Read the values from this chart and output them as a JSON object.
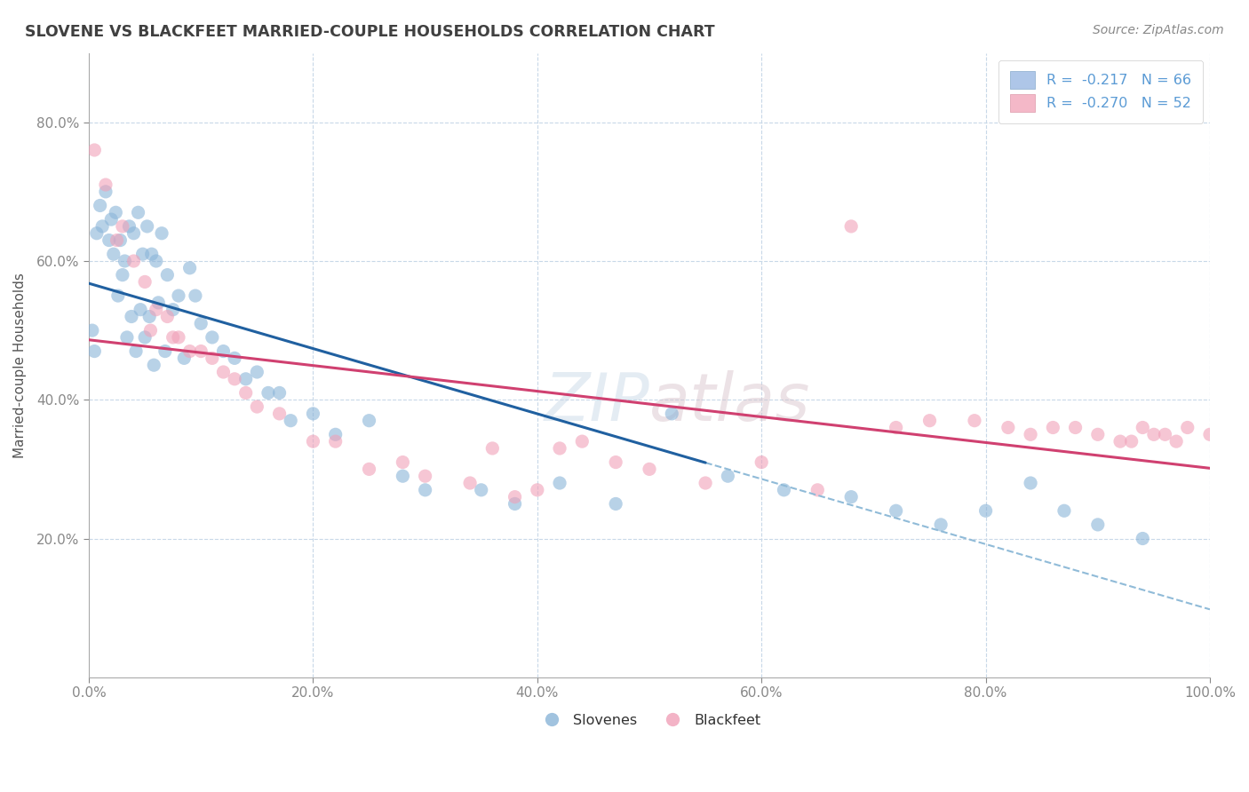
{
  "title": "SLOVENE VS BLACKFEET MARRIED-COUPLE HOUSEHOLDS CORRELATION CHART",
  "source": "Source: ZipAtlas.com",
  "ylabel": "Married-couple Households",
  "legend_entries": [
    {
      "label": "R =  -0.217   N = 66",
      "color": "#aec6e8"
    },
    {
      "label": "R =  -0.270   N = 52",
      "color": "#f4b8c8"
    }
  ],
  "legend_labels_bottom": [
    "Slovenes",
    "Blackfeet"
  ],
  "watermark": "ZIPatlas",
  "blue_dot_color": "#8ab4d8",
  "pink_dot_color": "#f0a0b8",
  "line_blue": "#2060a0",
  "line_pink": "#d04070",
  "dashed_blue": "#90bbd8",
  "title_color": "#404040",
  "axis_color": "#5b9bd5",
  "grid_color": "#c8d8e8",
  "background_color": "#ffffff",
  "slovene_x": [
    0.3,
    0.5,
    0.7,
    1.0,
    1.2,
    1.5,
    1.8,
    2.0,
    2.2,
    2.4,
    2.6,
    2.8,
    3.0,
    3.2,
    3.4,
    3.6,
    3.8,
    4.0,
    4.2,
    4.4,
    4.6,
    4.8,
    5.0,
    5.2,
    5.4,
    5.6,
    5.8,
    6.0,
    6.2,
    6.5,
    6.8,
    7.0,
    7.5,
    8.0,
    8.5,
    9.0,
    9.5,
    10.0,
    11.0,
    12.0,
    13.0,
    14.0,
    15.0,
    16.0,
    17.0,
    18.0,
    20.0,
    22.0,
    25.0,
    28.0,
    30.0,
    35.0,
    38.0,
    42.0,
    47.0,
    52.0,
    57.0,
    62.0,
    68.0,
    72.0,
    76.0,
    80.0,
    84.0,
    87.0,
    90.0,
    94.0
  ],
  "slovene_y": [
    50.0,
    47.0,
    64.0,
    68.0,
    65.0,
    70.0,
    63.0,
    66.0,
    61.0,
    67.0,
    55.0,
    63.0,
    58.0,
    60.0,
    49.0,
    65.0,
    52.0,
    64.0,
    47.0,
    67.0,
    53.0,
    61.0,
    49.0,
    65.0,
    52.0,
    61.0,
    45.0,
    60.0,
    54.0,
    64.0,
    47.0,
    58.0,
    53.0,
    55.0,
    46.0,
    59.0,
    55.0,
    51.0,
    49.0,
    47.0,
    46.0,
    43.0,
    44.0,
    41.0,
    41.0,
    37.0,
    38.0,
    35.0,
    37.0,
    29.0,
    27.0,
    27.0,
    25.0,
    28.0,
    25.0,
    38.0,
    29.0,
    27.0,
    26.0,
    24.0,
    22.0,
    24.0,
    28.0,
    24.0,
    22.0,
    20.0
  ],
  "blackfeet_x": [
    0.5,
    1.5,
    2.5,
    3.0,
    4.0,
    5.0,
    5.5,
    6.0,
    7.0,
    7.5,
    8.0,
    9.0,
    10.0,
    11.0,
    12.0,
    13.0,
    14.0,
    15.0,
    17.0,
    20.0,
    22.0,
    25.0,
    28.0,
    30.0,
    34.0,
    36.0,
    38.0,
    40.0,
    42.0,
    44.0,
    47.0,
    50.0,
    55.0,
    60.0,
    65.0,
    68.0,
    72.0,
    75.0,
    79.0,
    82.0,
    84.0,
    86.0,
    88.0,
    90.0,
    92.0,
    93.0,
    94.0,
    95.0,
    96.0,
    97.0,
    98.0,
    100.0
  ],
  "blackfeet_y": [
    76.0,
    71.0,
    63.0,
    65.0,
    60.0,
    57.0,
    50.0,
    53.0,
    52.0,
    49.0,
    49.0,
    47.0,
    47.0,
    46.0,
    44.0,
    43.0,
    41.0,
    39.0,
    38.0,
    34.0,
    34.0,
    30.0,
    31.0,
    29.0,
    28.0,
    33.0,
    26.0,
    27.0,
    33.0,
    34.0,
    31.0,
    30.0,
    28.0,
    31.0,
    27.0,
    65.0,
    36.0,
    37.0,
    37.0,
    36.0,
    35.0,
    36.0,
    36.0,
    35.0,
    34.0,
    34.0,
    36.0,
    35.0,
    35.0,
    34.0,
    36.0,
    35.0
  ],
  "xlim": [
    0.0,
    100.0
  ],
  "ylim": [
    0.0,
    90.0
  ],
  "xtick_positions": [
    0.0,
    20.0,
    40.0,
    60.0,
    80.0,
    100.0
  ],
  "xtick_labels": [
    "0.0%",
    "20.0%",
    "40.0%",
    "60.0%",
    "80.0%",
    "100.0%"
  ],
  "ytick_positions": [
    20.0,
    40.0,
    60.0,
    80.0
  ],
  "ytick_labels": [
    "20.0%",
    "40.0%",
    "60.0%",
    "80.0%"
  ]
}
